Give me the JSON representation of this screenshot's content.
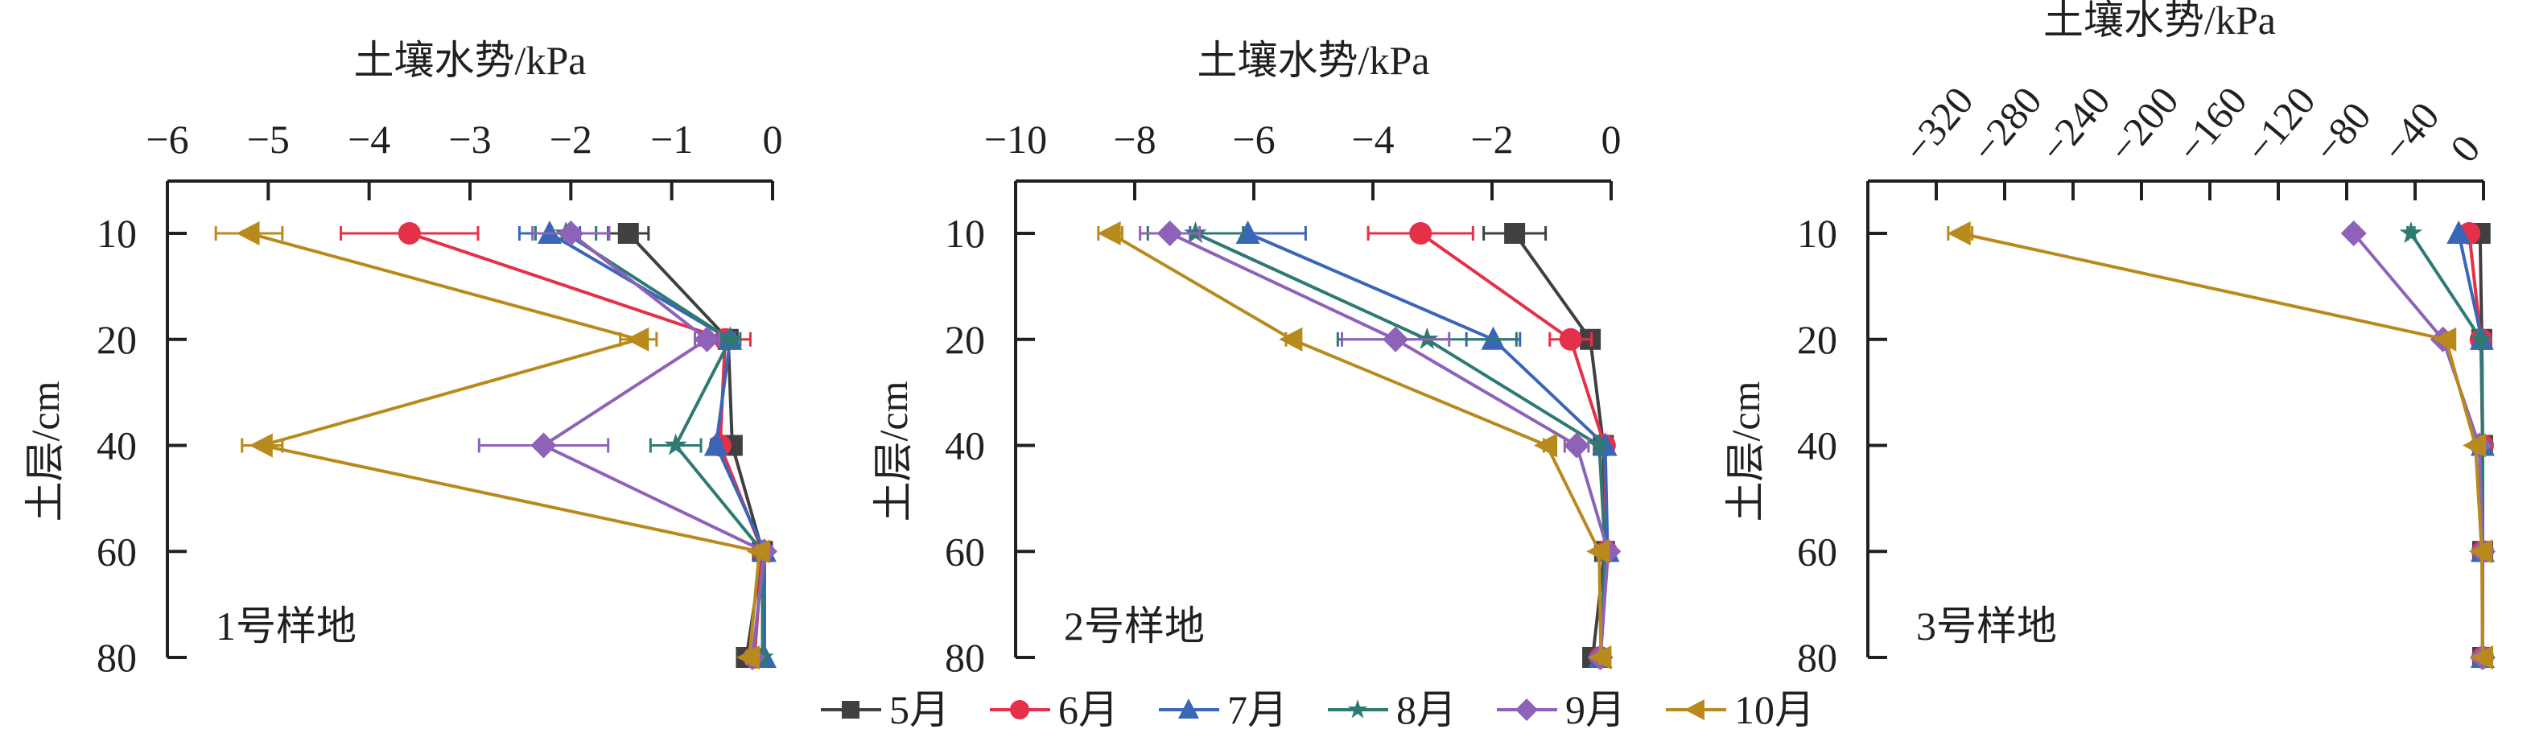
{
  "chart_data": [
    {
      "type": "line",
      "panel_label": "1号样地",
      "xlabel": "土壤水势/kPa",
      "ylabel": "土层/cm",
      "xlim": [
        -6,
        0
      ],
      "xticks": [
        "−6",
        "−5",
        "−4",
        "−3",
        "−2",
        "−1",
        "0"
      ],
      "xtick_values": [
        -6,
        -5,
        -4,
        -3,
        -2,
        -1,
        0
      ],
      "categories": [
        "10",
        "20",
        "40",
        "60",
        "80"
      ],
      "series": [
        {
          "name": "5月",
          "values": [
            -1.43,
            -0.44,
            -0.4,
            -0.1,
            -0.26
          ],
          "err": [
            0.2,
            0.05,
            0.05,
            0.02,
            0.05
          ]
        },
        {
          "name": "6月",
          "values": [
            -3.6,
            -0.47,
            -0.52,
            -0.1,
            -0.18
          ],
          "err": [
            0.68,
            0.25,
            0.05,
            0.02,
            0.03
          ]
        },
        {
          "name": "7月",
          "values": [
            -2.21,
            -0.42,
            -0.56,
            -0.08,
            -0.08
          ],
          "err": [
            0.3,
            0.05,
            0.05,
            0.02,
            0.02
          ]
        },
        {
          "name": "8月",
          "values": [
            -2.05,
            -0.42,
            -0.96,
            -0.1,
            -0.1
          ],
          "err": [
            0.3,
            0.1,
            0.25,
            0.02,
            0.02
          ]
        },
        {
          "name": "9月",
          "values": [
            -2.0,
            -0.65,
            -2.27,
            -0.08,
            -0.2
          ],
          "err": [
            0.38,
            0.12,
            0.64,
            0.02,
            0.03
          ]
        },
        {
          "name": "10月",
          "values": [
            -5.19,
            -1.33,
            -5.06,
            -0.13,
            -0.23
          ],
          "err": [
            0.33,
            0.18,
            0.2,
            0.02,
            0.03
          ]
        }
      ]
    },
    {
      "type": "line",
      "panel_label": "2号样地",
      "xlabel": "土壤水势/kPa",
      "ylabel": "土层/cm",
      "xlim": [
        -10,
        0
      ],
      "xticks": [
        "−10",
        "−8",
        "−6",
        "−4",
        "−2",
        "0"
      ],
      "xtick_values": [
        -10,
        -8,
        -6,
        -4,
        -2,
        0
      ],
      "categories": [
        "10",
        "20",
        "40",
        "60",
        "80"
      ],
      "series": [
        {
          "name": "5月",
          "values": [
            -1.62,
            -0.35,
            -0.13,
            -0.11,
            -0.31
          ],
          "err": [
            0.52,
            0.1,
            0.03,
            0.02,
            0.03
          ]
        },
        {
          "name": "6月",
          "values": [
            -3.2,
            -0.68,
            -0.11,
            -0.08,
            -0.18
          ],
          "err": [
            0.88,
            0.35,
            0.03,
            0.02,
            0.02
          ]
        },
        {
          "name": "7月",
          "values": [
            -6.1,
            -1.98,
            -0.1,
            -0.06,
            -0.18
          ],
          "err": [
            0.97,
            0.45,
            0.03,
            0.02,
            0.02
          ]
        },
        {
          "name": "8月",
          "values": [
            -6.98,
            -3.09,
            -0.2,
            -0.1,
            -0.18
          ],
          "err": [
            0.8,
            1.5,
            0.05,
            0.02,
            0.02
          ]
        },
        {
          "name": "9月",
          "values": [
            -7.41,
            -3.62,
            -0.58,
            -0.05,
            -0.18
          ],
          "err": [
            0.5,
            0.9,
            0.2,
            0.02,
            0.02
          ]
        },
        {
          "name": "10月",
          "values": [
            -8.41,
            -5.36,
            -1.08,
            -0.2,
            -0.17
          ],
          "err": [
            0.2,
            0.1,
            0.05,
            0.03,
            0.02
          ]
        }
      ]
    },
    {
      "type": "line",
      "panel_label": "3号样地",
      "xlabel": "土壤水势/kPa",
      "ylabel": "土层/cm",
      "xlim": [
        -360,
        0
      ],
      "xticks": [
        "−320",
        "−280",
        "−240",
        "−200",
        "−160",
        "−120",
        "−80",
        "−40",
        "0"
      ],
      "xtick_values": [
        -320,
        -280,
        -240,
        -200,
        -160,
        -120,
        -80,
        -40,
        0
      ],
      "categories": [
        "10",
        "20",
        "40",
        "60",
        "80"
      ],
      "series": [
        {
          "name": "5月",
          "values": [
            -2,
            -1,
            -0.5,
            -0.5,
            -0.5
          ],
          "err": [
            0.5,
            0.3,
            0.2,
            0.2,
            0.2
          ]
        },
        {
          "name": "6月",
          "values": [
            -8.4,
            -1.5,
            -0.5,
            -0.5,
            -0.5
          ],
          "err": [
            1,
            0.3,
            0.2,
            0.2,
            0.2
          ]
        },
        {
          "name": "7月",
          "values": [
            -14.5,
            -1,
            -0.5,
            -0.5,
            -0.5
          ],
          "err": [
            1,
            0.3,
            0.2,
            0.2,
            0.2
          ]
        },
        {
          "name": "8月",
          "values": [
            -42.4,
            -1.4,
            -0.5,
            -0.5,
            -0.5
          ],
          "err": [
            2,
            0.3,
            0.2,
            0.2,
            0.2
          ]
        },
        {
          "name": "9月",
          "values": [
            -75.9,
            -23.7,
            -2.5,
            -0.5,
            -0.5
          ],
          "err": [
            3,
            1,
            0.5,
            0.2,
            0.2
          ]
        },
        {
          "name": "10月",
          "values": [
            -306,
            -22,
            -4.7,
            -1,
            -0.5
          ],
          "err": [
            7,
            1,
            0.5,
            0.2,
            0.2
          ]
        }
      ]
    }
  ],
  "legend": {
    "placement": "bottom-center",
    "items": [
      {
        "label": "5月",
        "color": "#404040",
        "marker": "square"
      },
      {
        "label": "6月",
        "color": "#e5304a",
        "marker": "circle"
      },
      {
        "label": "7月",
        "color": "#3a66b8",
        "marker": "triangle-up"
      },
      {
        "label": "8月",
        "color": "#2e7a72",
        "marker": "star"
      },
      {
        "label": "9月",
        "color": "#8e62b8",
        "marker": "diamond"
      },
      {
        "label": "10月",
        "color": "#b88a1e",
        "marker": "triangle-left"
      }
    ]
  }
}
